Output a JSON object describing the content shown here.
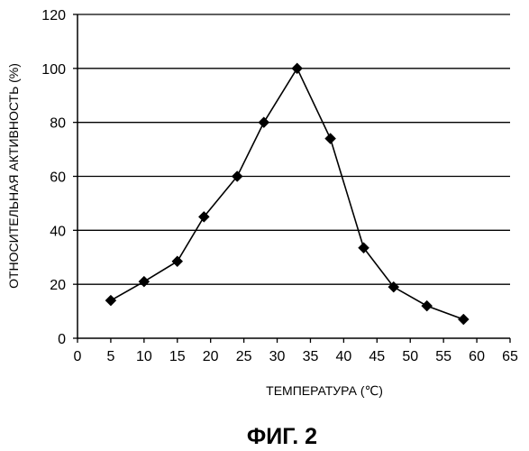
{
  "figure_caption": "ФИГ. 2",
  "chart_data": {
    "type": "line",
    "title": "",
    "xlabel": "ТЕМПЕРАТУРА (℃)",
    "ylabel": "ОТНОСИТЕЛЬНАЯ АКТИВНОСТЬ (%)",
    "xlim": [
      0,
      65
    ],
    "ylim": [
      0,
      120
    ],
    "xticks": [
      0,
      5,
      10,
      15,
      20,
      25,
      30,
      35,
      40,
      45,
      50,
      55,
      60,
      65
    ],
    "yticks": [
      0,
      20,
      40,
      60,
      80,
      100,
      120
    ],
    "grid": "horizontal",
    "legend": "none",
    "marker": "diamond",
    "series": [
      {
        "x": [
          5,
          10,
          15,
          19,
          24,
          28,
          33,
          38,
          43,
          47.5,
          52.5,
          58
        ],
        "y": [
          14,
          21,
          28.5,
          45,
          60,
          80,
          100,
          74,
          33.5,
          19,
          12,
          7
        ]
      }
    ],
    "color": "#000000"
  }
}
